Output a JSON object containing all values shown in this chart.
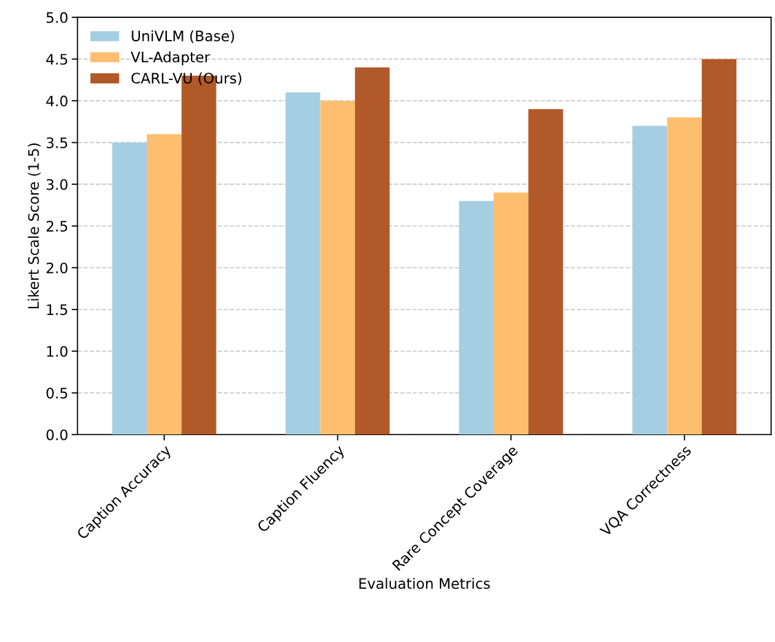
{
  "chart_data": {
    "type": "bar",
    "xlabel": "Evaluation Metrics",
    "ylabel": "Likert Scale Score (1-5)",
    "categories": [
      "Caption Accuracy",
      "Caption Fluency",
      "Rare Concept Coverage",
      "VQA Correctness"
    ],
    "series": [
      {
        "name": "UniVLM (Base)",
        "color": "#a6cee3",
        "values": [
          3.5,
          4.1,
          2.8,
          3.7
        ]
      },
      {
        "name": "VL-Adapter",
        "color": "#fdbf6f",
        "values": [
          3.6,
          4.0,
          2.9,
          3.8
        ]
      },
      {
        "name": "CARL-VU (Ours)",
        "color": "#b15928",
        "values": [
          4.3,
          4.4,
          3.9,
          4.5
        ]
      }
    ],
    "ylim": [
      0,
      5
    ],
    "yticks": [
      {
        "value": 0,
        "label": "0.0"
      },
      {
        "value": 0.5,
        "label": "0.5"
      },
      {
        "value": 1,
        "label": "1.0"
      },
      {
        "value": 1.5,
        "label": "1.5"
      },
      {
        "value": 2,
        "label": "2.0"
      },
      {
        "value": 2.5,
        "label": "2.5"
      },
      {
        "value": 3,
        "label": "3.0"
      },
      {
        "value": 3.5,
        "label": "3.5"
      },
      {
        "value": 4,
        "label": "4.0"
      },
      {
        "value": 4.5,
        "label": "4.5"
      },
      {
        "value": 5,
        "label": "5.0"
      }
    ],
    "grid": "y",
    "legend": "top left"
  }
}
